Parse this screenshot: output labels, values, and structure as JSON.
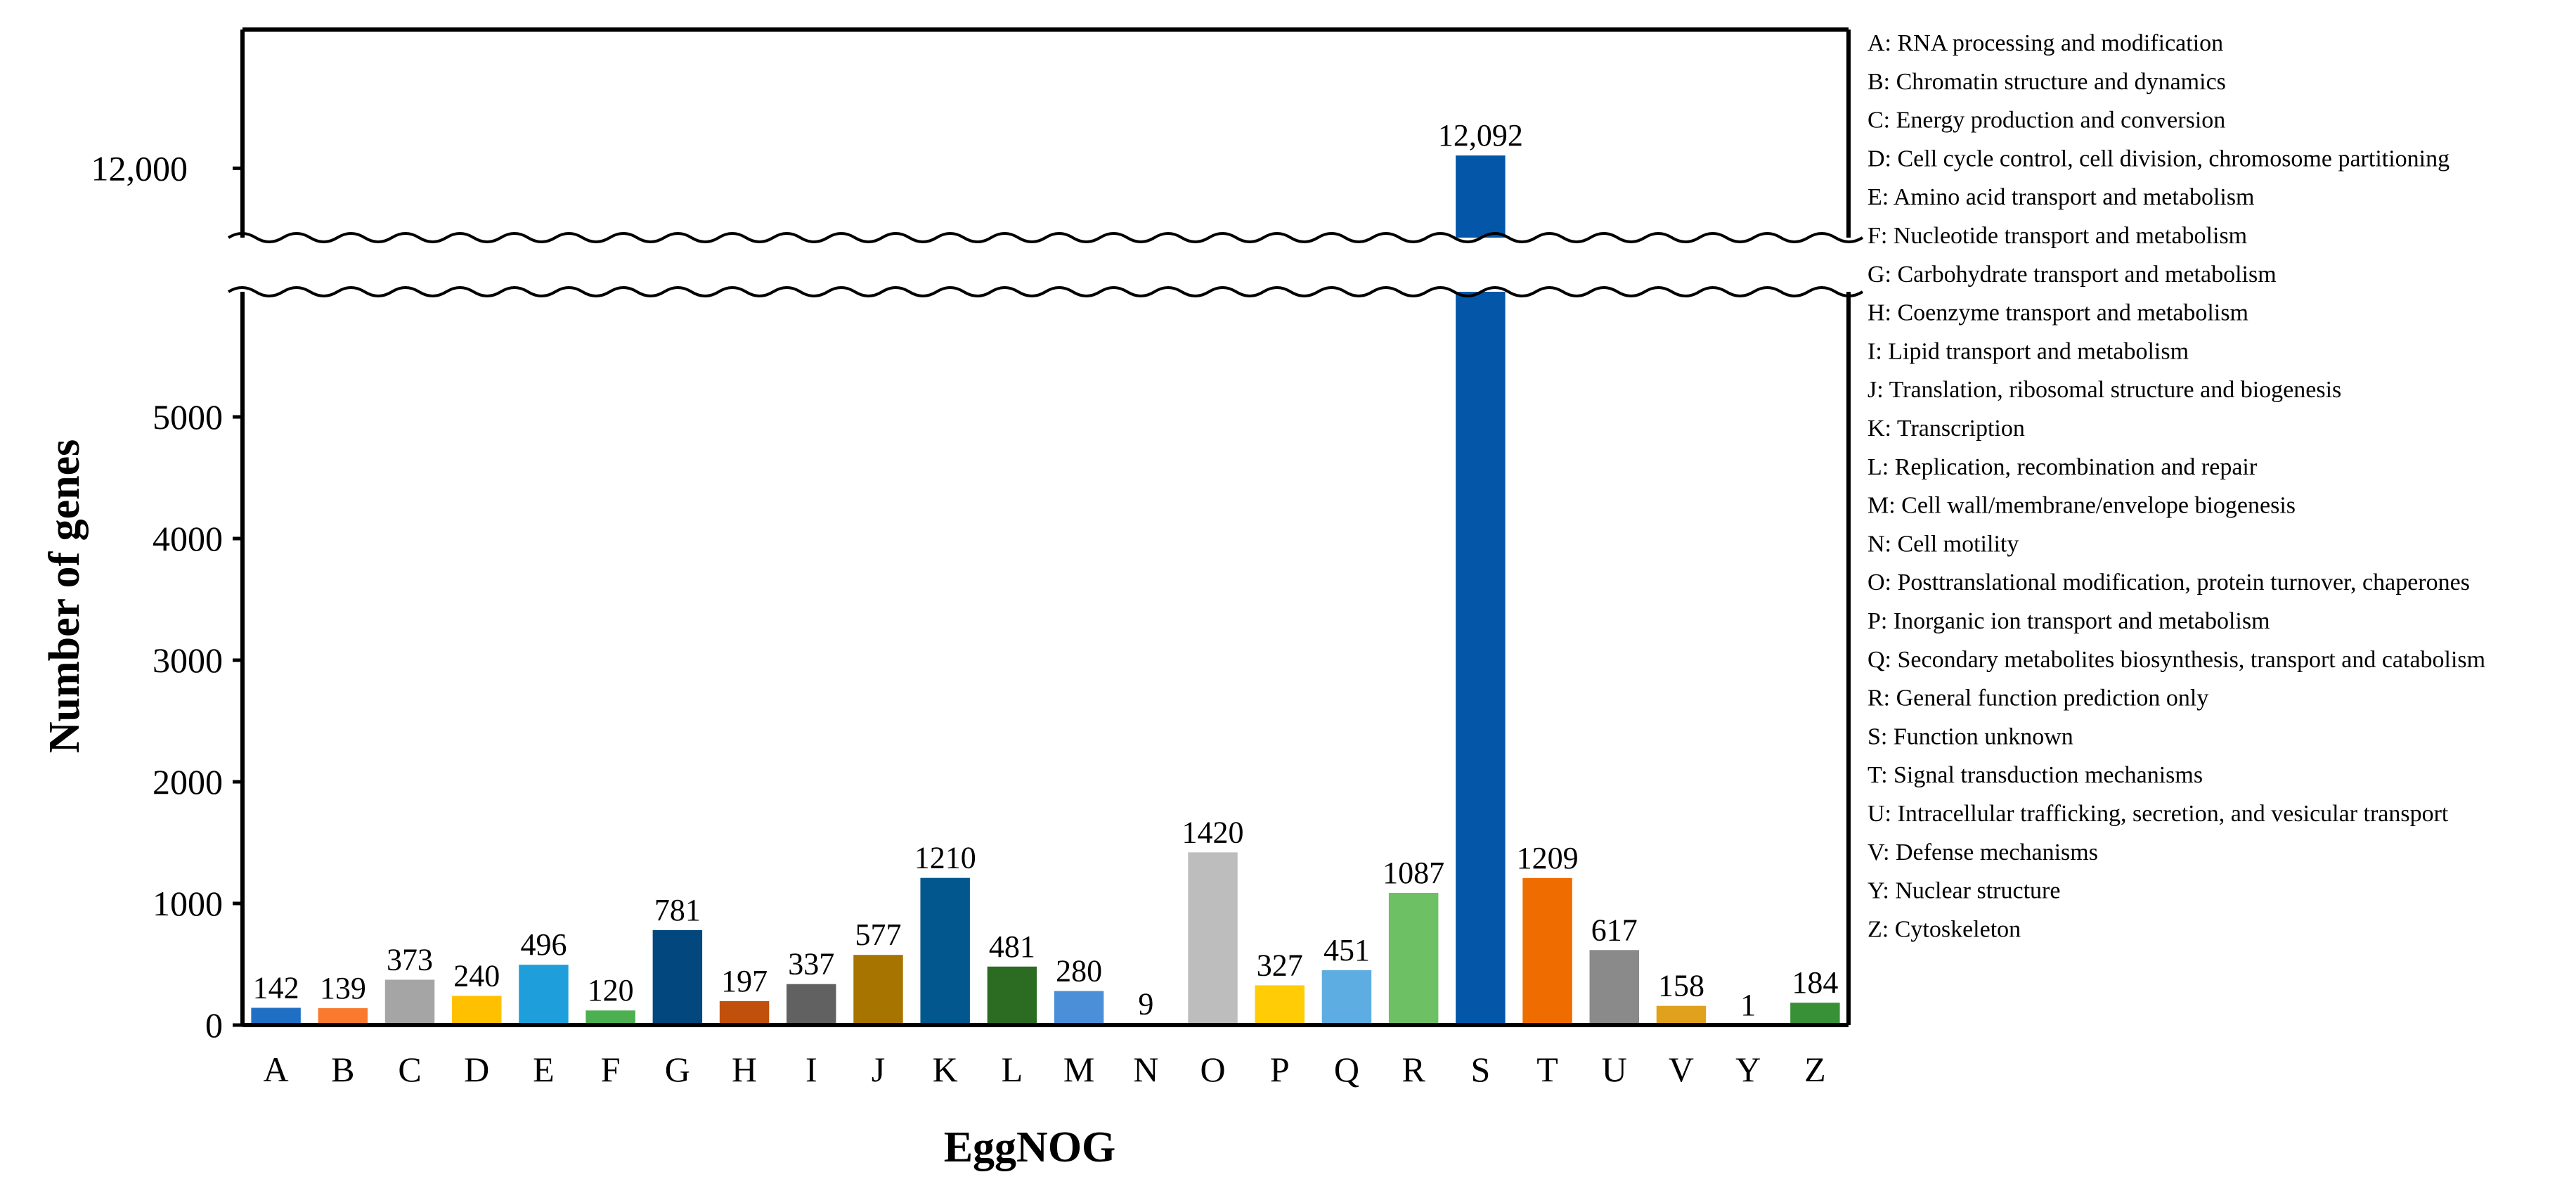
{
  "chart_data": {
    "type": "bar",
    "title": "",
    "xlabel": "EggNOG",
    "ylabel": "Number of genes",
    "axis_break": true,
    "ylim_lower": [
      0,
      6000
    ],
    "ylim_upper": [
      11500,
      13000
    ],
    "yticks_lower": [
      0,
      1000,
      2000,
      3000,
      4000,
      5000
    ],
    "yticks_lower_labels": [
      "0",
      "1000",
      "2000",
      "3000",
      "4000",
      "5000"
    ],
    "yticks_upper": [
      12000
    ],
    "yticks_upper_labels": [
      "12,000"
    ],
    "grid": false,
    "legend_position": "right",
    "categories": [
      "A",
      "B",
      "C",
      "D",
      "E",
      "F",
      "G",
      "H",
      "I",
      "J",
      "K",
      "L",
      "M",
      "N",
      "O",
      "P",
      "Q",
      "R",
      "S",
      "T",
      "U",
      "V",
      "Y",
      "Z"
    ],
    "values": [
      142,
      139,
      373,
      240,
      496,
      120,
      781,
      197,
      337,
      577,
      1210,
      481,
      280,
      9,
      1420,
      327,
      451,
      1087,
      12092,
      1209,
      617,
      158,
      1,
      184
    ],
    "value_labels": [
      "142",
      "139",
      "373",
      "240",
      "496",
      "120",
      "781",
      "197",
      "337",
      "577",
      "1210",
      "481",
      "280",
      "9",
      "1420",
      "327",
      "451",
      "1087",
      "12,092",
      "1209",
      "617",
      "158",
      "1",
      "184"
    ],
    "colors": [
      "#1F6FC5",
      "#F97A2E",
      "#A5A5A5",
      "#FFC000",
      "#1E9FDC",
      "#4CAF50",
      "#02477E",
      "#C0500C",
      "#616161",
      "#A87400",
      "#01578E",
      "#2B6B22",
      "#4A8FD8",
      "#DDDDDD",
      "#BDBDBD",
      "#FFCC05",
      "#5DADE2",
      "#6DC063",
      "#0457A8",
      "#EF6C00",
      "#8A8A8A",
      "#E0A11C",
      "#D5D5D5",
      "#389137"
    ],
    "legend": [
      "A: RNA processing and modification",
      "B: Chromatin structure and dynamics",
      "C: Energy production and conversion",
      "D: Cell cycle control, cell division, chromosome partitioning",
      "E: Amino acid transport and metabolism",
      "F: Nucleotide transport and metabolism",
      "G: Carbohydrate transport and metabolism",
      "H: Coenzyme transport and metabolism",
      "I: Lipid transport and metabolism",
      "J: Translation, ribosomal structure and biogenesis",
      "K: Transcription",
      "L: Replication, recombination and repair",
      "M: Cell wall/membrane/envelope biogenesis",
      "N: Cell motility",
      "O: Posttranslational modification, protein turnover, chaperones",
      "P: Inorganic ion transport and metabolism",
      "Q: Secondary metabolites biosynthesis, transport and catabolism",
      "R: General function prediction only",
      "S: Function unknown",
      "T: Signal transduction mechanisms",
      "U: Intracellular trafficking, secretion, and vesicular transport",
      "V: Defense mechanisms",
      "Y: Nuclear structure",
      "Z: Cytoskeleton"
    ]
  }
}
